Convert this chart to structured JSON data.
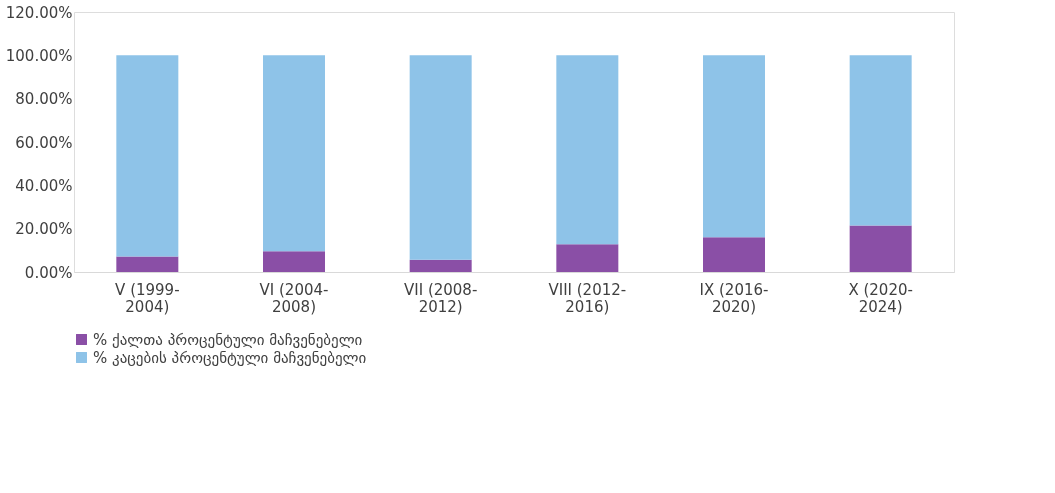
{
  "chart_data": {
    "type": "bar",
    "stacked": true,
    "categories": [
      "V (1999-2004)",
      "VI (2004-2008)",
      "VII (2008-2012)",
      "VIII (2012-2016)",
      "IX (2016-2020)",
      "X (2020-2024)"
    ],
    "series": [
      {
        "name": "% ქალთა პროცენტული მაჩვენებელი",
        "color": "#8a4fa6",
        "values": [
          7.2,
          9.6,
          5.6,
          12.8,
          16.0,
          21.5
        ]
      },
      {
        "name": "% კაცების პროცენტული მაჩვენებელი",
        "color": "#8ec3e8",
        "values": [
          92.8,
          90.4,
          94.4,
          87.2,
          84.0,
          78.5
        ]
      }
    ],
    "ylim": [
      0,
      120
    ],
    "yticks": [
      {
        "value": 0,
        "label": "0.00%"
      },
      {
        "value": 20,
        "label": "20.00%"
      },
      {
        "value": 40,
        "label": "40.00%"
      },
      {
        "value": 60,
        "label": "60.00%"
      },
      {
        "value": 80,
        "label": "80.00%"
      },
      {
        "value": 100,
        "label": "100.00%"
      },
      {
        "value": 120,
        "label": "120.00%"
      }
    ],
    "grid": false,
    "legend": "bottom"
  }
}
